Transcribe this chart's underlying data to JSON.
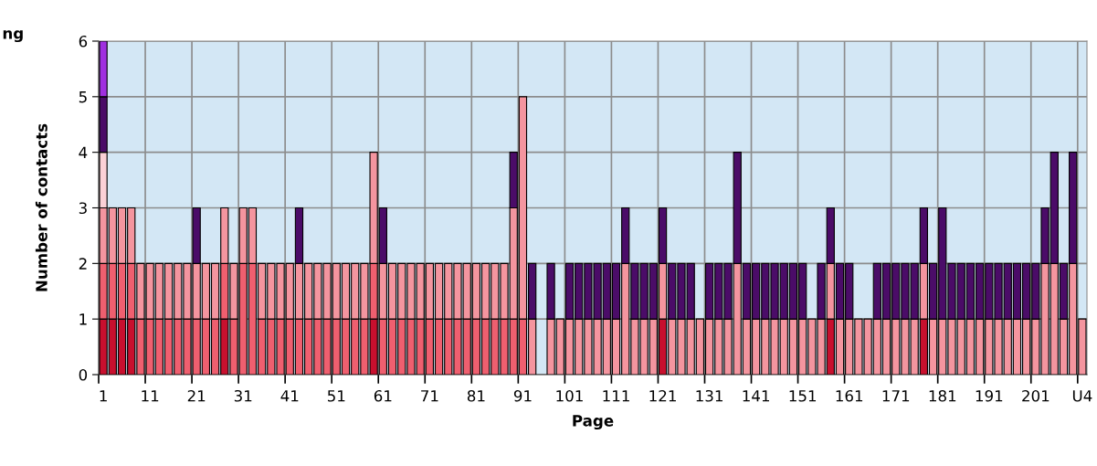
{
  "chart_data": {
    "type": "bar",
    "stacked": true,
    "xlabel": "Page",
    "ylabel": "Number of contacts",
    "annotations": [
      "ng"
    ],
    "categories": [
      "1",
      null,
      null,
      null,
      null,
      "11",
      null,
      null,
      null,
      null,
      "21",
      null,
      null,
      null,
      null,
      "31",
      null,
      null,
      null,
      null,
      "41",
      null,
      null,
      null,
      null,
      "51",
      null,
      null,
      null,
      null,
      "61",
      null,
      null,
      null,
      null,
      "71",
      null,
      null,
      null,
      null,
      "81",
      null,
      null,
      null,
      null,
      "91",
      null,
      null,
      null,
      null,
      "101",
      null,
      null,
      null,
      null,
      "111",
      null,
      null,
      null,
      null,
      "121",
      null,
      null,
      null,
      null,
      "131",
      null,
      null,
      null,
      null,
      "141",
      null,
      null,
      null,
      null,
      "151",
      null,
      null,
      null,
      null,
      "161",
      null,
      null,
      null,
      null,
      "171",
      null,
      null,
      null,
      null,
      "181",
      null,
      null,
      null,
      null,
      "191",
      null,
      null,
      null,
      null,
      "201",
      null,
      null,
      null,
      null,
      "U4"
    ],
    "series": [
      {
        "color": "#c8102e",
        "values": [
          1,
          1,
          1,
          1,
          0,
          0,
          0,
          0,
          0,
          0,
          0,
          0,
          0,
          1,
          0,
          0,
          0,
          0,
          0,
          0,
          0,
          0,
          0,
          0,
          0,
          0,
          0,
          0,
          0,
          1,
          0,
          0,
          0,
          0,
          0,
          0,
          0,
          0,
          0,
          0,
          0,
          0,
          0,
          0,
          0,
          0,
          0,
          0,
          0,
          0,
          0,
          0,
          0,
          0,
          0,
          0,
          0,
          0,
          0,
          0,
          1,
          0,
          0,
          0,
          0,
          0,
          0,
          0,
          0,
          0,
          0,
          0,
          0,
          0,
          0,
          0,
          0,
          0,
          1,
          0,
          0,
          0,
          0,
          0,
          0,
          0,
          0,
          0,
          1,
          0,
          0,
          0,
          0,
          0,
          0,
          0,
          0,
          0,
          0,
          0,
          0,
          0,
          0,
          0,
          0,
          0
        ]
      },
      {
        "color": "#ef5f6f",
        "values": [
          1,
          1,
          1,
          1,
          1,
          1,
          1,
          1,
          1,
          1,
          1,
          1,
          1,
          1,
          1,
          2,
          2,
          1,
          1,
          1,
          1,
          1,
          1,
          1,
          1,
          1,
          1,
          1,
          1,
          1,
          1,
          1,
          1,
          1,
          1,
          1,
          1,
          1,
          1,
          1,
          1,
          1,
          1,
          1,
          1,
          1,
          0,
          0,
          0,
          0,
          0,
          0,
          0,
          0,
          0,
          0,
          0,
          0,
          0,
          0,
          0,
          0,
          0,
          0,
          0,
          0,
          0,
          0,
          0,
          0,
          0,
          0,
          0,
          0,
          0,
          0,
          0,
          0,
          0,
          0,
          0,
          0,
          0,
          0,
          0,
          0,
          0,
          0,
          0,
          0,
          0,
          0,
          0,
          0,
          0,
          0,
          0,
          0,
          0,
          0,
          0,
          0,
          0,
          0,
          0,
          0
        ]
      },
      {
        "color": "#f4959f",
        "values": [
          1,
          1,
          1,
          1,
          1,
          1,
          1,
          1,
          1,
          1,
          1,
          1,
          1,
          1,
          1,
          1,
          1,
          1,
          1,
          1,
          1,
          1,
          1,
          1,
          1,
          1,
          1,
          1,
          1,
          2,
          1,
          1,
          1,
          1,
          1,
          1,
          1,
          1,
          1,
          1,
          1,
          1,
          1,
          1,
          2,
          4,
          1,
          0,
          1,
          1,
          1,
          1,
          1,
          1,
          1,
          1,
          2,
          1,
          1,
          1,
          1,
          1,
          1,
          1,
          1,
          1,
          1,
          1,
          2,
          1,
          1,
          1,
          1,
          1,
          1,
          1,
          1,
          1,
          1,
          1,
          1,
          1,
          1,
          1,
          1,
          1,
          1,
          1,
          1,
          1,
          1,
          1,
          1,
          1,
          1,
          1,
          1,
          1,
          1,
          1,
          1,
          2,
          2,
          1,
          2,
          1
        ]
      },
      {
        "color": "#fbd0d6",
        "values": [
          1,
          0,
          0,
          0,
          0,
          0,
          0,
          0,
          0,
          0,
          0,
          0,
          0,
          0,
          0,
          0,
          0,
          0,
          0,
          0,
          0,
          0,
          0,
          0,
          0,
          0,
          0,
          0,
          0,
          0,
          0,
          0,
          0,
          0,
          0,
          0,
          0,
          0,
          0,
          0,
          0,
          0,
          0,
          0,
          0,
          0,
          0,
          0,
          0,
          0,
          0,
          0,
          0,
          0,
          0,
          0,
          0,
          0,
          0,
          0,
          0,
          0,
          0,
          0,
          0,
          0,
          0,
          0,
          0,
          0,
          0,
          0,
          0,
          0,
          0,
          0,
          0,
          0,
          0,
          0,
          0,
          0,
          0,
          0,
          0,
          0,
          0,
          0,
          0,
          0,
          0,
          0,
          0,
          0,
          0,
          0,
          0,
          0,
          0,
          0,
          0,
          0,
          0,
          0,
          0,
          0
        ]
      },
      {
        "color": "#4b0c68",
        "values": [
          1,
          0,
          0,
          0,
          0,
          0,
          0,
          0,
          0,
          0,
          1,
          0,
          0,
          0,
          0,
          0,
          0,
          0,
          0,
          0,
          0,
          1,
          0,
          0,
          0,
          0,
          0,
          0,
          0,
          0,
          1,
          0,
          0,
          0,
          0,
          0,
          0,
          0,
          0,
          0,
          0,
          0,
          0,
          0,
          1,
          0,
          1,
          0,
          1,
          0,
          1,
          1,
          1,
          1,
          1,
          1,
          1,
          1,
          1,
          1,
          1,
          1,
          1,
          1,
          0,
          1,
          1,
          1,
          2,
          1,
          1,
          1,
          1,
          1,
          1,
          1,
          0,
          1,
          1,
          1,
          1,
          0,
          0,
          1,
          1,
          1,
          1,
          1,
          1,
          1,
          2,
          1,
          1,
          1,
          1,
          1,
          1,
          1,
          1,
          1,
          1,
          1,
          2,
          1,
          2,
          0
        ]
      },
      {
        "color": "#a030e0",
        "values": [
          1,
          0,
          0,
          0,
          0,
          0,
          0,
          0,
          0,
          0,
          0,
          0,
          0,
          0,
          0,
          0,
          0,
          0,
          0,
          0,
          0,
          0,
          0,
          0,
          0,
          0,
          0,
          0,
          0,
          0,
          0,
          0,
          0,
          0,
          0,
          0,
          0,
          0,
          0,
          0,
          0,
          0,
          0,
          0,
          0,
          0,
          0,
          0,
          0,
          0,
          0,
          0,
          0,
          0,
          0,
          0,
          0,
          0,
          0,
          0,
          0,
          0,
          0,
          0,
          0,
          0,
          0,
          0,
          0,
          0,
          0,
          0,
          0,
          0,
          0,
          0,
          0,
          0,
          0,
          0,
          0,
          0,
          0,
          0,
          0,
          0,
          0,
          0,
          0,
          0,
          0,
          0,
          0,
          0,
          0,
          0,
          0,
          0,
          0,
          0,
          0,
          0,
          0,
          0,
          0,
          0
        ]
      }
    ],
    "ylim": [
      0,
      6
    ],
    "yticks": [
      0,
      1,
      2,
      3,
      4,
      5,
      6
    ],
    "grid": true
  }
}
